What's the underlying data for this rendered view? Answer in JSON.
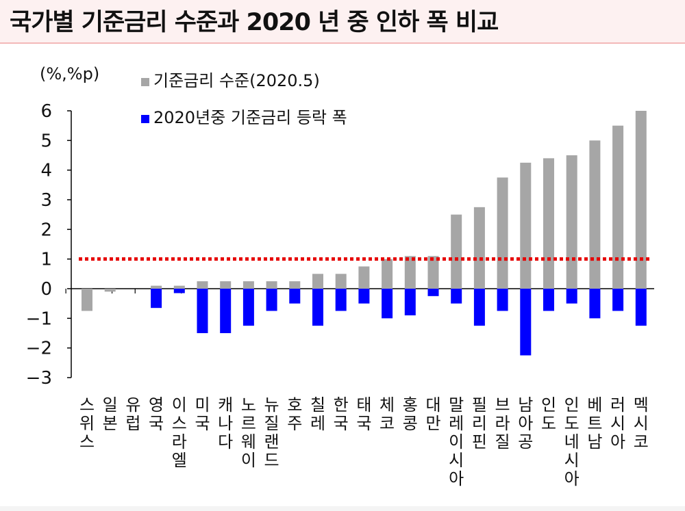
{
  "title": "국가별 기준금리 수준과 2020 년 중 인하 폭 비교",
  "chart_data": {
    "type": "bar",
    "unit_label": "(%,%p)",
    "categories": [
      "스위스",
      "일본",
      "유럽",
      "영국",
      "이스라엘",
      "미국",
      "캐나다",
      "노르웨이",
      "뉴질랜드",
      "호주",
      "칠레",
      "한국",
      "태국",
      "체코",
      "홍콩",
      "대만",
      "말레이시아",
      "필리핀",
      "브라질",
      "남아공",
      "인도",
      "인도네시아",
      "베트남",
      "러시아",
      "멕시코"
    ],
    "series": [
      {
        "name": "기준금리 수준(2020.5)",
        "color": "#a6a6a6",
        "values": [
          -0.75,
          -0.1,
          0,
          0.1,
          0.1,
          0.25,
          0.25,
          0.25,
          0.25,
          0.25,
          0.5,
          0.5,
          0.75,
          1.0,
          1.1,
          1.1,
          2.5,
          2.75,
          3.75,
          4.25,
          4.4,
          4.5,
          5.0,
          5.5,
          6.0
        ]
      },
      {
        "name": "2020년중 기준금리 등락 폭",
        "color": "#0000ff",
        "values": [
          0,
          0,
          0,
          -0.65,
          -0.15,
          -1.5,
          -1.5,
          -1.25,
          -0.75,
          -0.5,
          -1.25,
          -0.75,
          -0.5,
          -1.0,
          -0.9,
          -0.25,
          -0.5,
          -1.25,
          -0.75,
          -2.25,
          -0.75,
          -0.5,
          -1.0,
          -0.75,
          -1.25
        ]
      }
    ],
    "ylim": [
      -3,
      6
    ],
    "yticks": [
      "6",
      "5",
      "4",
      "3",
      "2",
      "1",
      "0",
      "−1",
      "−2",
      "−3"
    ],
    "reference_line": {
      "value": 1,
      "color": "#e60000",
      "style": "dotted"
    },
    "legend_position": "top-left"
  }
}
